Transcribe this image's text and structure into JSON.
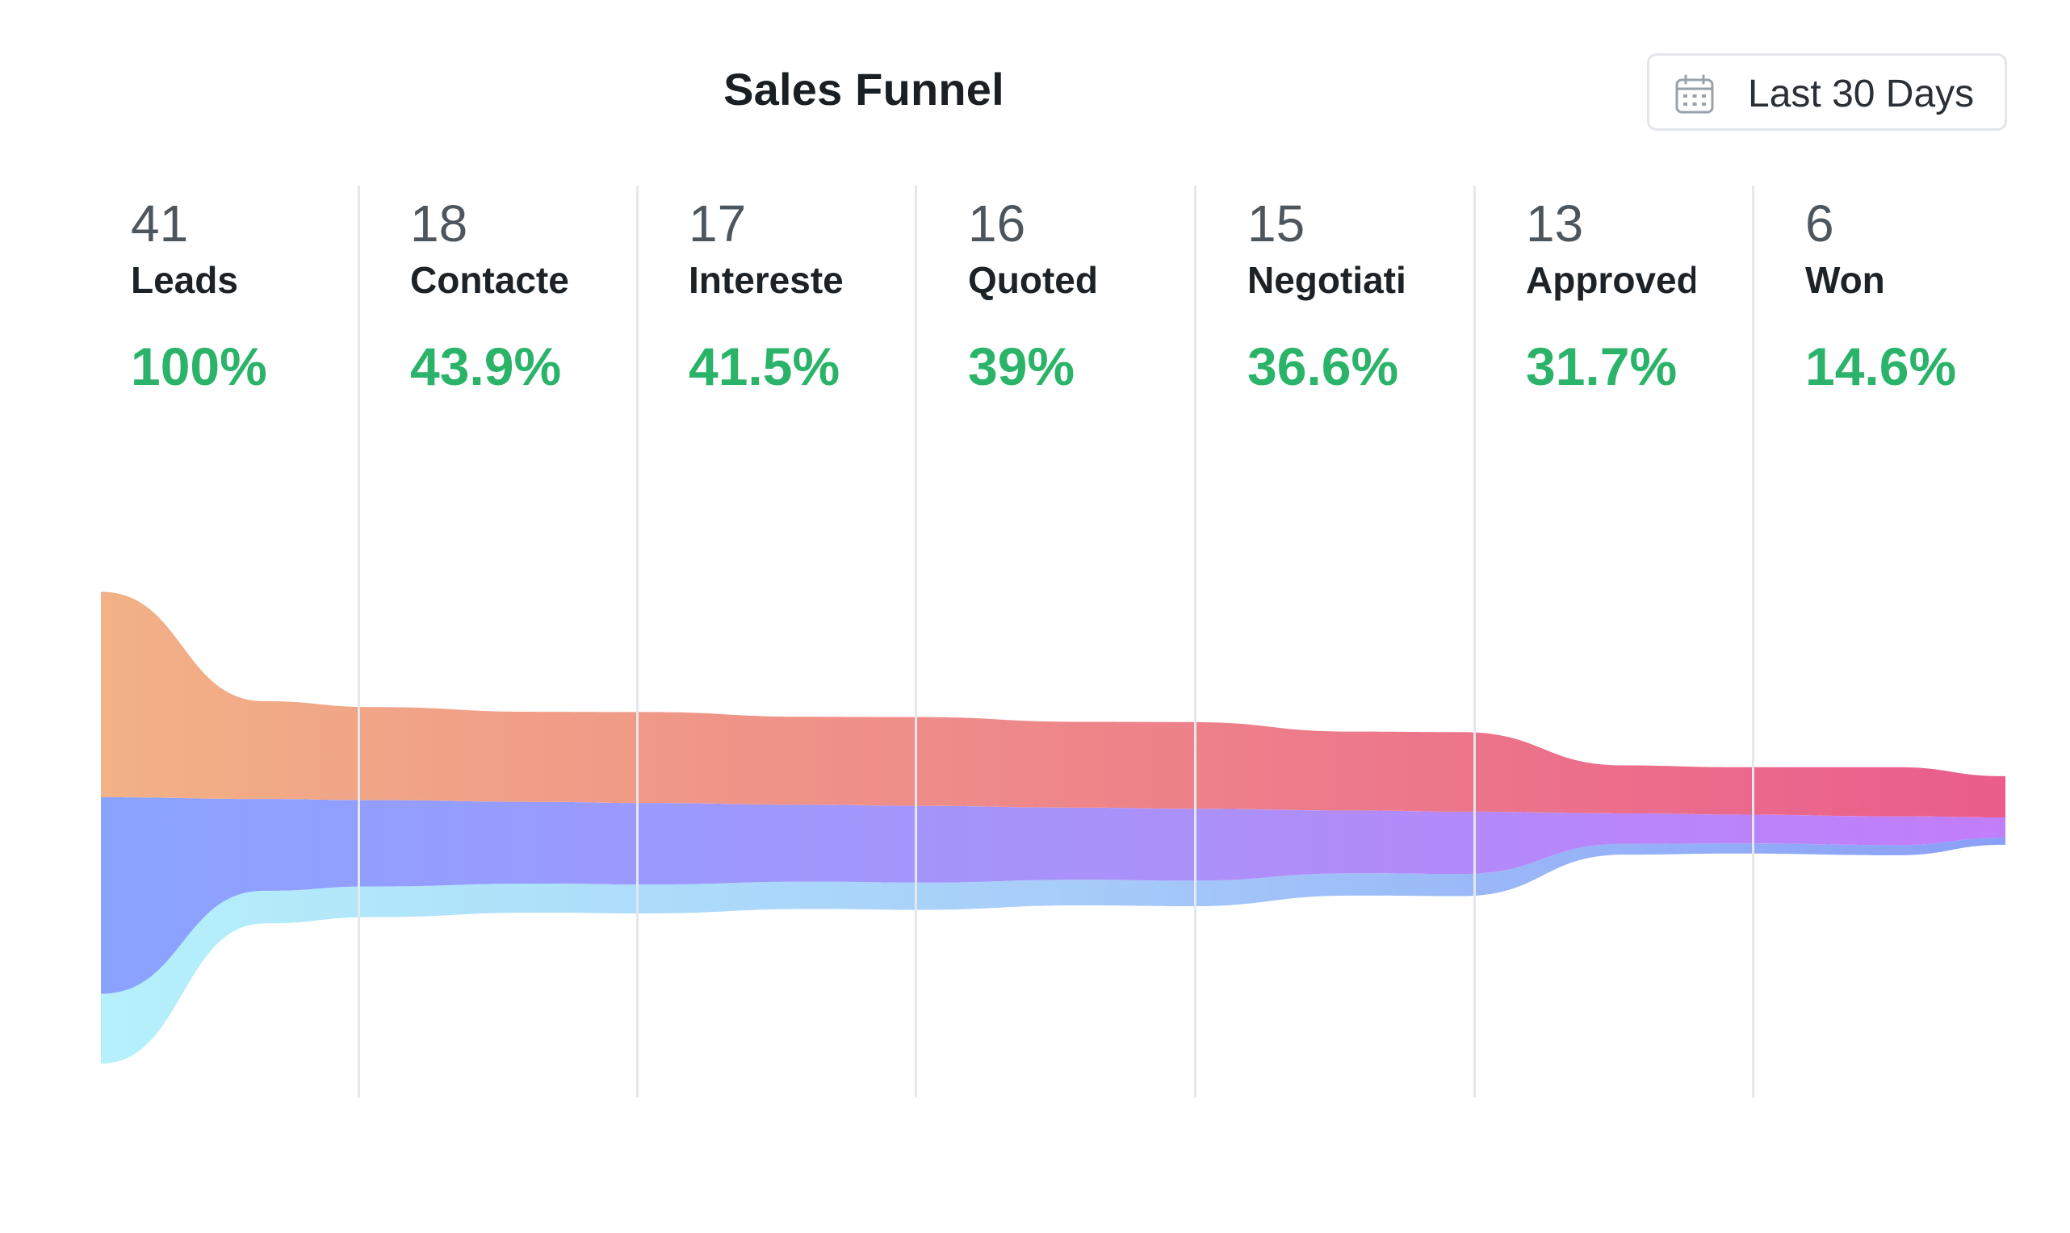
{
  "header": {
    "title": "Sales Funnel",
    "date_range_label": "Last 30 Days",
    "date_icon": "calendar-icon"
  },
  "chart_data": {
    "type": "area",
    "title": "Sales Funnel",
    "categories": [
      "Leads",
      "Contacte",
      "Intereste",
      "Quoted",
      "Negotiati",
      "Approved",
      "Won"
    ],
    "counts": [
      "41",
      "18",
      "17",
      "16",
      "15",
      "13",
      "6"
    ],
    "percentages": [
      "100%",
      "43.9%",
      "41.5%",
      "39%",
      "36.6%",
      "31.7%",
      "14.6%"
    ],
    "values": [
      41,
      18,
      17,
      16,
      15,
      13,
      6
    ],
    "rate_values": [
      100,
      43.9,
      41.5,
      39,
      36.6,
      31.7,
      14.6
    ],
    "grid": true,
    "legend": "none",
    "colors": {
      "top_start": "#f2b186",
      "top_end": "#ea5d8c",
      "middle_start": "#8aa3ff",
      "middle_end": "#c27dfb",
      "bottom_start": "#b5f1fb",
      "bottom_end": "#8a9ff7",
      "percent_green": "#2bb36a",
      "divider": "#e4e7eb"
    }
  }
}
